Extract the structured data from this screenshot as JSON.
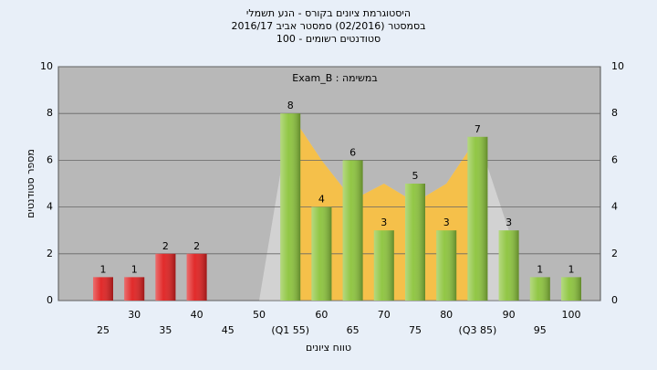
{
  "chart_data": {
    "type": "bar",
    "title": "היסטוגרמת ציונים בקורס - הנע תשמלי",
    "subtitle": "בסמסטר  (02/2016)  סמסטר אביב 2016/17",
    "subtitle2": "סטודנטים רשומים - 100",
    "annotation": "במשימה : Exam_B",
    "x_label": "טווח ציונים",
    "y_label": "מספר סטודנטים",
    "categories": [
      "25",
      "30",
      "35",
      "40",
      "45",
      "50",
      "(Q1 55)",
      "60",
      "65",
      "70",
      "75",
      "80",
      "(Q3 85)",
      "90",
      "95",
      "100"
    ],
    "values": [
      1,
      1,
      2,
      2,
      0,
      0,
      8,
      4,
      6,
      3,
      5,
      3,
      7,
      3,
      1,
      1
    ],
    "colors": [
      "#e02020",
      "#e02020",
      "#e02020",
      "#e02020",
      "#e02020",
      "#e02020",
      "#8cc43c",
      "#8cc43c",
      "#8cc43c",
      "#8cc43c",
      "#8cc43c",
      "#8cc43c",
      "#8cc43c",
      "#8cc43c",
      "#8cc43c",
      "#8cc43c"
    ],
    "areas": [
      {
        "color": "#d2d2d2",
        "values": [
          null,
          null,
          null,
          null,
          null,
          0,
          8,
          6,
          4.3,
          5,
          4.2,
          5,
          7,
          3,
          null,
          null
        ]
      },
      {
        "color": "#f5c04a",
        "values": [
          null,
          null,
          null,
          null,
          null,
          null,
          8,
          6,
          4.3,
          5,
          4.2,
          5,
          7,
          null,
          null,
          null
        ]
      }
    ],
    "ylim": [
      0,
      10
    ],
    "yticks": [
      0,
      2,
      4,
      6,
      8,
      10
    ],
    "grid": true
  }
}
